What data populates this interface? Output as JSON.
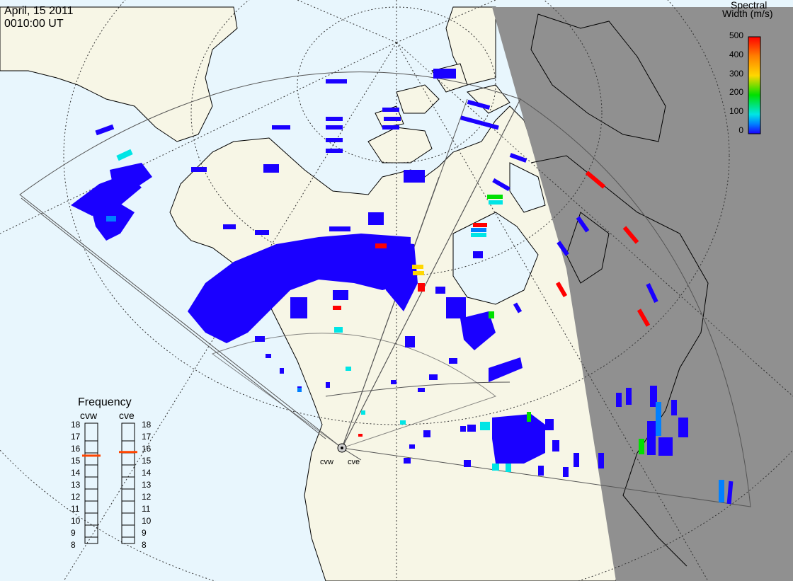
{
  "header": {
    "date": "April, 15 2011",
    "time": "0010:00 UT"
  },
  "colorbar": {
    "title_line1": "Spectral",
    "title_line2": "Width (m/s)",
    "ticks": [
      "500",
      "400",
      "300",
      "200",
      "100",
      "0"
    ],
    "colors": [
      "#ff0000",
      "#ff8000",
      "#ffd700",
      "#00e000",
      "#00e5e5",
      "#0080ff",
      "#1a00ff"
    ]
  },
  "frequency_panel": {
    "title": "Frequency",
    "radar_left": "cvw",
    "radar_right": "cve",
    "scale_min_mhz": 8,
    "scale_max_mhz": 18,
    "ticks": [
      "18",
      "17",
      "16",
      "15",
      "14",
      "13",
      "12",
      "11",
      "10",
      "9",
      "8"
    ],
    "cvw_frequency_mhz": 15.3,
    "cve_frequency_mhz": 15.6,
    "indicator_color": "#ff4500"
  },
  "sites": {
    "west_label": "cvw",
    "east_label": "cve"
  },
  "map_colors": {
    "ocean": "#e8f6fd",
    "land": "#f7f6e6",
    "night": "#909090",
    "echo_low": "#1a00ff"
  }
}
